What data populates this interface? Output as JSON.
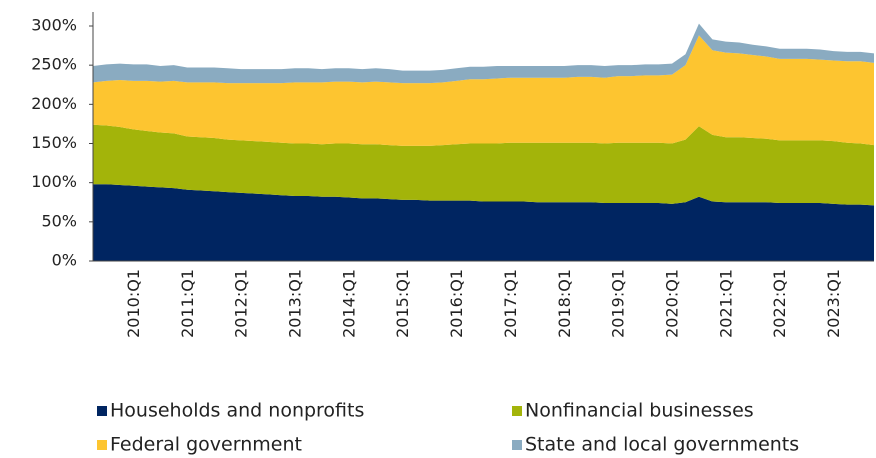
{
  "chart_data": {
    "type": "stacked-area",
    "categories": [
      null,
      null,
      null,
      "2010:Q1",
      null,
      null,
      null,
      "2011:Q1",
      null,
      null,
      null,
      "2012:Q1",
      null,
      null,
      null,
      "2013:Q1",
      null,
      null,
      null,
      "2014:Q1",
      null,
      null,
      null,
      "2015:Q1",
      null,
      null,
      null,
      "2016:Q1",
      null,
      null,
      null,
      "2017:Q1",
      null,
      null,
      null,
      "2018:Q1",
      null,
      null,
      null,
      "2019:Q1",
      null,
      null,
      null,
      "2020:Q1",
      null,
      null,
      null,
      "2021:Q1",
      null,
      null,
      null,
      "2022:Q1",
      null,
      null,
      null,
      "2023:Q1",
      null,
      null,
      null
    ],
    "series": [
      {
        "name": "Households and nonprofits",
        "color": "#002561",
        "values": [
          98,
          98,
          97,
          96,
          95,
          94,
          93,
          91,
          90,
          89,
          88,
          87,
          86,
          85,
          84,
          83,
          83,
          82,
          82,
          81,
          80,
          80,
          79,
          78,
          78,
          77,
          77,
          77,
          77,
          76,
          76,
          76,
          76,
          75,
          75,
          75,
          75,
          75,
          74,
          74,
          74,
          74,
          74,
          73,
          75,
          82,
          76,
          75,
          75,
          75,
          75,
          74,
          74,
          74,
          74,
          73,
          72,
          72,
          71
        ]
      },
      {
        "name": "Nonfinancial businesses",
        "color": "#a3b40a",
        "values": [
          76,
          75,
          74,
          72,
          71,
          70,
          70,
          68,
          68,
          68,
          67,
          67,
          67,
          67,
          67,
          67,
          67,
          67,
          68,
          69,
          69,
          69,
          69,
          69,
          69,
          70,
          71,
          72,
          73,
          74,
          74,
          75,
          75,
          76,
          76,
          76,
          76,
          76,
          76,
          77,
          77,
          77,
          77,
          77,
          80,
          90,
          85,
          83,
          83,
          82,
          81,
          80,
          80,
          80,
          80,
          80,
          79,
          78,
          77
        ]
      },
      {
        "name": "Federal government",
        "color": "#fdc530",
        "values": [
          54,
          57,
          60,
          62,
          64,
          65,
          67,
          69,
          70,
          71,
          72,
          73,
          74,
          75,
          76,
          78,
          78,
          79,
          79,
          79,
          79,
          80,
          80,
          80,
          80,
          80,
          80,
          81,
          82,
          82,
          83,
          83,
          83,
          83,
          83,
          83,
          84,
          84,
          84,
          85,
          85,
          86,
          86,
          88,
          95,
          116,
          108,
          108,
          107,
          106,
          105,
          104,
          104,
          104,
          103,
          103,
          104,
          105,
          105
        ]
      },
      {
        "name": "State and local governments",
        "color": "#8aabc1",
        "values": [
          21,
          21,
          21,
          21,
          21,
          20,
          20,
          19,
          19,
          19,
          19,
          18,
          18,
          18,
          18,
          18,
          18,
          17,
          17,
          17,
          17,
          17,
          17,
          16,
          16,
          16,
          16,
          16,
          16,
          16,
          16,
          15,
          15,
          15,
          15,
          15,
          15,
          15,
          15,
          14,
          14,
          14,
          14,
          14,
          14,
          15,
          14,
          14,
          14,
          13,
          13,
          13,
          13,
          13,
          13,
          12,
          12,
          12,
          12
        ]
      }
    ],
    "ylim": [
      0,
      300
    ],
    "yticks": [
      {
        "value": 0,
        "label": "0%"
      },
      {
        "value": 50,
        "label": "50%"
      },
      {
        "value": 100,
        "label": "100%"
      },
      {
        "value": 150,
        "label": "150%"
      },
      {
        "value": 200,
        "label": "200%"
      },
      {
        "value": 250,
        "label": "250%"
      },
      {
        "value": 300,
        "label": "300%"
      }
    ],
    "legend": "bottom"
  }
}
